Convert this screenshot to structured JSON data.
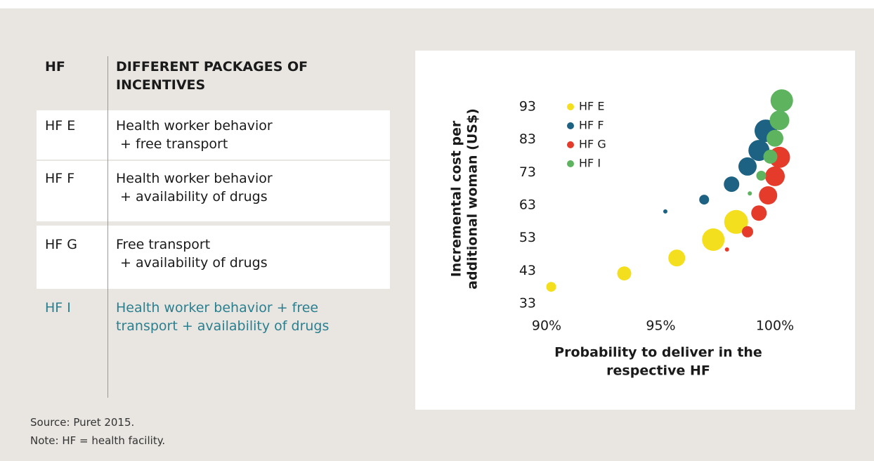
{
  "table": {
    "headers": [
      "HF",
      "DIFFERENT PACKAGES OF INCENTIVES"
    ],
    "rows": [
      [
        "HF E",
        "Health worker behavior\n + free transport"
      ],
      [
        "HF F",
        "Health worker behavior\n + availability of drugs"
      ],
      [
        "HF G",
        "Free transport\n + availability of drugs"
      ],
      [
        "HF I",
        "Health worker behavior + free transport + availability of drugs"
      ]
    ]
  },
  "chart_data": {
    "type": "bubble",
    "xlabel": [
      "Probability to deliver in the",
      "respective HF"
    ],
    "ylabel": [
      "Incremental cost per",
      "additional woman (US$)"
    ],
    "xlim": [
      90,
      100
    ],
    "xticks": [
      {
        "value": 90,
        "label": "90%"
      },
      {
        "value": 95,
        "label": "95%"
      },
      {
        "value": 100,
        "label": "100%"
      }
    ],
    "ylim": [
      33,
      93
    ],
    "yticks": [
      33,
      43,
      53,
      63,
      73,
      83,
      93
    ],
    "grid": false,
    "legend": "upper left",
    "series": [
      {
        "name": "HF E",
        "color": "#f4df1f",
        "x": [
          90.2,
          93.4,
          95.7,
          97.3,
          98.3
        ],
        "values": [
          38.1,
          42.2,
          46.9,
          52.5,
          57.9
        ],
        "sizes": [
          7,
          10,
          12,
          16,
          17
        ]
      },
      {
        "name": "HF F",
        "color": "#1d6283",
        "x": [
          95.2,
          96.9,
          98.1,
          98.8,
          99.3,
          99.6
        ],
        "values": [
          61.1,
          64.7,
          69.4,
          74.8,
          79.7,
          85.7
        ],
        "sizes": [
          3,
          7,
          11,
          13,
          15,
          16
        ]
      },
      {
        "name": "HF G",
        "color": "#e43b2b",
        "x": [
          97.9,
          98.8,
          99.3,
          99.7,
          100.0,
          100.2
        ],
        "values": [
          49.5,
          54.9,
          60.6,
          66,
          71.8,
          77.6
        ],
        "sizes": [
          3,
          8,
          11,
          13,
          14,
          15
        ]
      },
      {
        "name": "HF I",
        "color": "#5db35e",
        "x": [
          98.9,
          99.4,
          99.8,
          100.0,
          100.2,
          100.3
        ],
        "values": [
          66.6,
          72,
          77.8,
          83.4,
          88.9,
          94.9
        ],
        "sizes": [
          3,
          7,
          10,
          12,
          14,
          16
        ]
      }
    ]
  },
  "source": "Source: Puret 2015.",
  "note": "Note: HF = health facility."
}
